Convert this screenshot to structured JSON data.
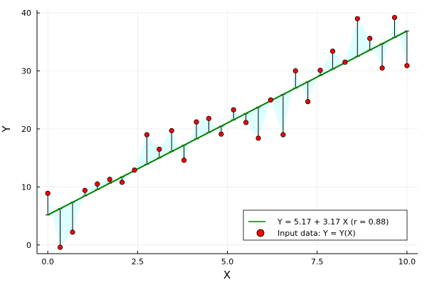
{
  "chart_data": {
    "type": "scatter",
    "xlabel": "X",
    "ylabel": "Y",
    "xlim": [
      -0.3,
      10.3
    ],
    "ylim": [
      -1.5,
      40.5
    ],
    "x_ticks": [
      0,
      2.5,
      5,
      7.5,
      10
    ],
    "x_tick_labels": [
      "0.0",
      "2.5",
      "5.0",
      "7.5",
      "10.0"
    ],
    "y_ticks": [
      0,
      10,
      20,
      30,
      40
    ],
    "y_tick_labels": [
      "0",
      "10",
      "20",
      "30",
      "40"
    ],
    "grid": true,
    "legend_position": "bottom-right",
    "fit": {
      "label": "Y = 5.17 + 3.17 X (r = 0.88)",
      "intercept": 5.17,
      "slope": 3.17,
      "color": "#008000",
      "ribbon_color": "#b3ffff"
    },
    "series": [
      {
        "name": "Input data: Y = Y(X)",
        "color": "#ff0000",
        "x": [
          0,
          0.345,
          0.69,
          1.034,
          1.379,
          1.724,
          2.069,
          2.414,
          2.759,
          3.103,
          3.448,
          3.793,
          4.138,
          4.483,
          4.828,
          5.172,
          5.517,
          5.862,
          6.207,
          6.552,
          6.897,
          7.241,
          7.586,
          7.931,
          8.276,
          8.621,
          8.966,
          9.31,
          9.655,
          10.0
        ],
        "y": [
          8.9,
          -0.4,
          2.2,
          9.4,
          10.5,
          11.3,
          10.8,
          12.9,
          19.0,
          16.5,
          19.7,
          14.6,
          21.2,
          21.8,
          19.1,
          23.3,
          21.1,
          18.4,
          25.0,
          19.0,
          30.0,
          24.7,
          30.1,
          33.4,
          31.5,
          39.0,
          35.6,
          30.5,
          39.2,
          30.9
        ]
      }
    ]
  }
}
